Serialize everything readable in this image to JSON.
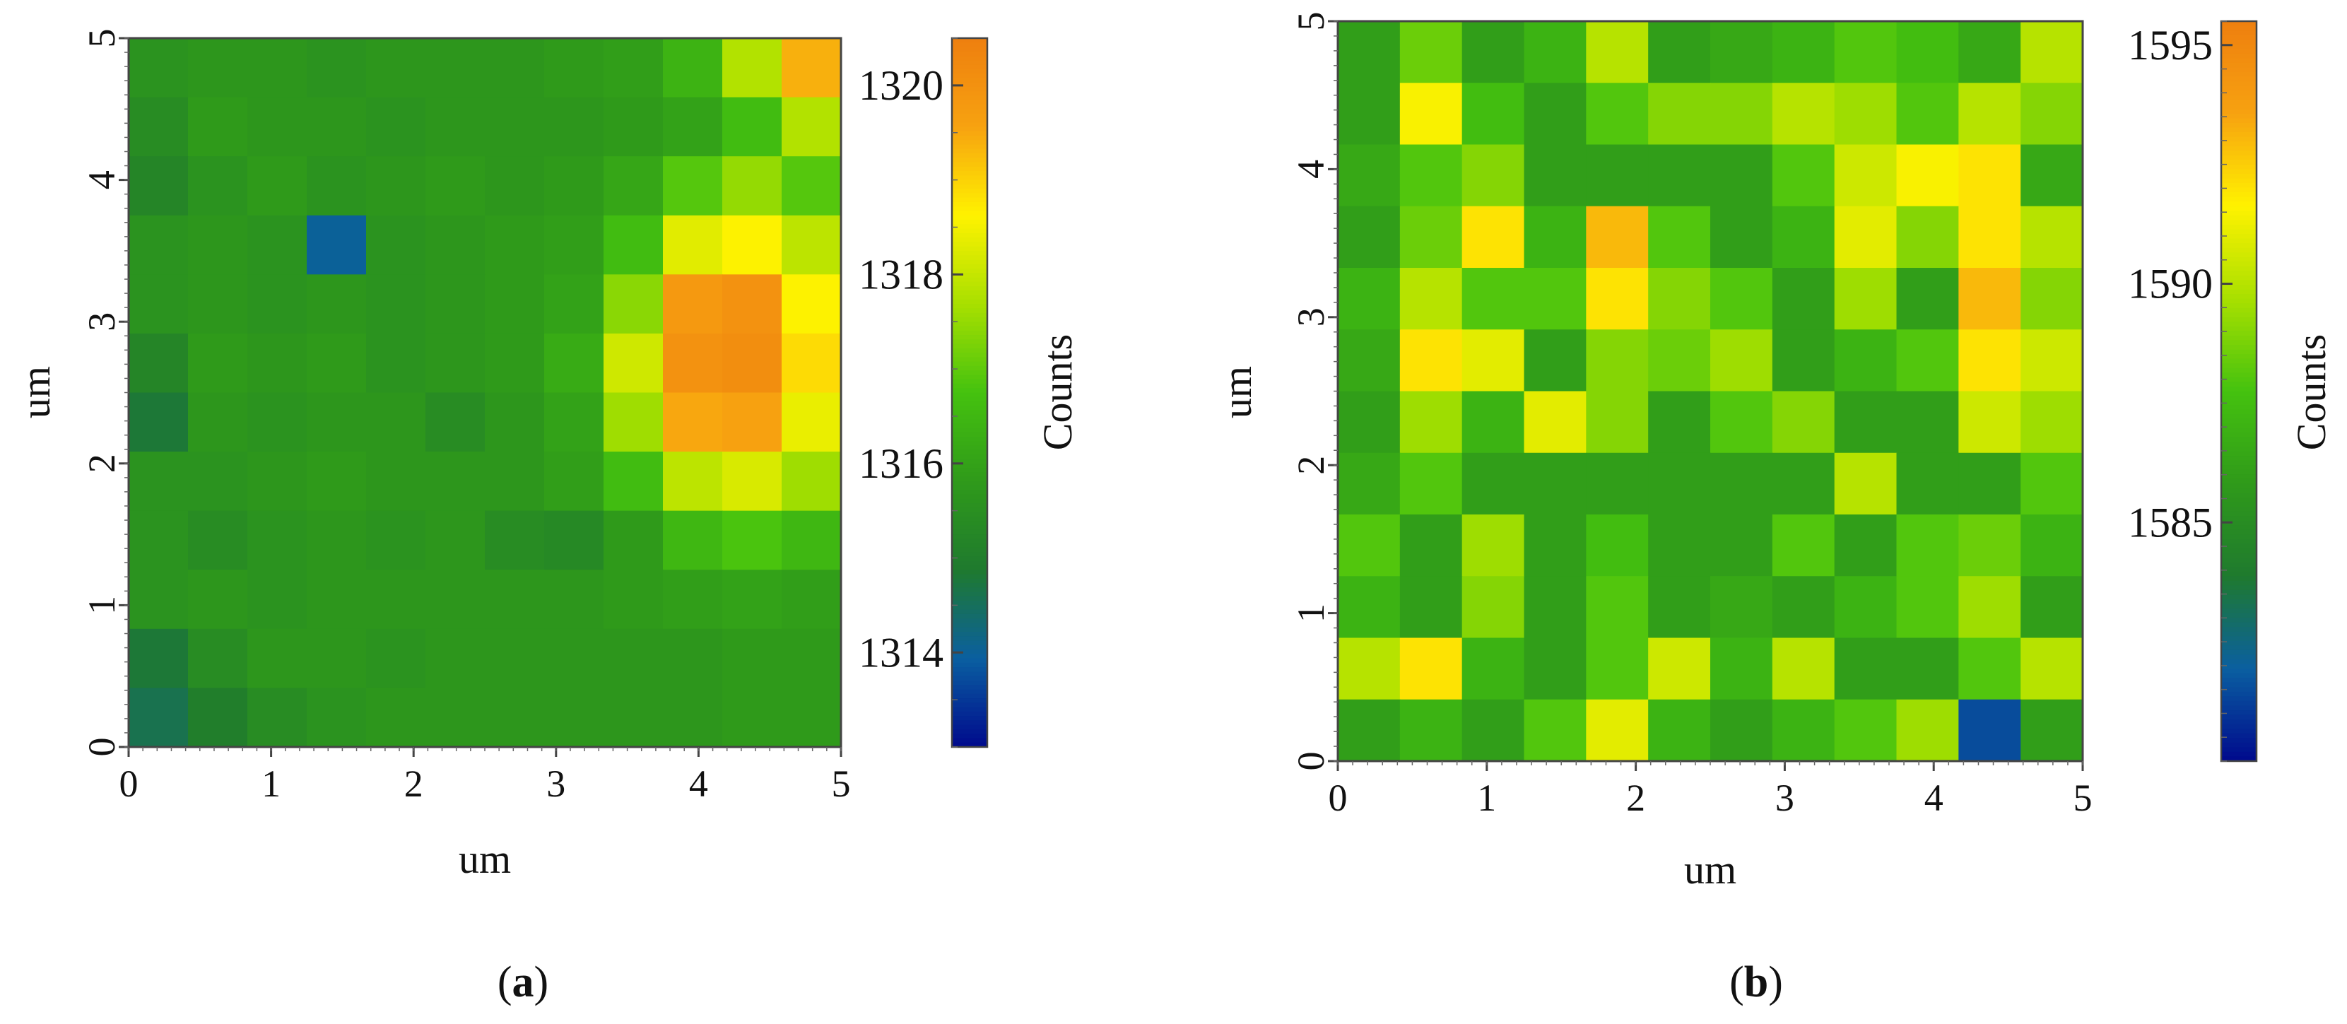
{
  "chart_data": [
    {
      "panel_label": "a",
      "type": "heatmap",
      "xlabel": "um",
      "ylabel": "um",
      "xlim": [
        0,
        5
      ],
      "ylim": [
        0,
        5
      ],
      "x_ticks": [
        0,
        1,
        2,
        3,
        4,
        5
      ],
      "y_ticks": [
        0,
        1,
        2,
        3,
        4,
        5
      ],
      "colorbar": {
        "label": "Counts",
        "min": 1313.0,
        "max": 1320.5,
        "ticks": [
          1314,
          1316,
          1318,
          1320
        ]
      },
      "grid_values": [
        [
          1315.6,
          1315.7,
          1315.7,
          1315.6,
          1315.7,
          1315.7,
          1315.7,
          1315.8,
          1315.9,
          1316.4,
          1317.8,
          1319.4
        ],
        [
          1315.4,
          1315.8,
          1315.7,
          1315.7,
          1315.6,
          1315.7,
          1315.7,
          1315.7,
          1315.8,
          1316.0,
          1316.6,
          1317.8
        ],
        [
          1315.2,
          1315.6,
          1315.8,
          1315.6,
          1315.7,
          1315.8,
          1315.7,
          1315.8,
          1316.1,
          1316.9,
          1317.5,
          1316.9
        ],
        [
          1315.6,
          1315.7,
          1315.6,
          1314.0,
          1315.6,
          1315.7,
          1315.8,
          1315.9,
          1316.6,
          1318.3,
          1318.6,
          1317.9
        ],
        [
          1315.6,
          1315.7,
          1315.6,
          1315.7,
          1315.6,
          1315.7,
          1315.8,
          1316.0,
          1317.4,
          1319.8,
          1320.0,
          1318.6
        ],
        [
          1315.2,
          1315.8,
          1315.7,
          1315.8,
          1315.6,
          1315.7,
          1315.8,
          1316.2,
          1318.1,
          1320.0,
          1320.1,
          1318.9
        ],
        [
          1314.8,
          1315.7,
          1315.6,
          1315.7,
          1315.7,
          1315.4,
          1315.7,
          1316.0,
          1317.6,
          1319.5,
          1319.6,
          1318.4
        ],
        [
          1315.6,
          1315.6,
          1315.7,
          1315.8,
          1315.7,
          1315.7,
          1315.7,
          1315.9,
          1316.6,
          1317.9,
          1318.2,
          1317.6
        ],
        [
          1315.6,
          1315.4,
          1315.6,
          1315.7,
          1315.6,
          1315.7,
          1315.4,
          1315.3,
          1315.8,
          1316.5,
          1316.8,
          1316.5
        ],
        [
          1315.6,
          1315.7,
          1315.6,
          1315.7,
          1315.7,
          1315.7,
          1315.7,
          1315.7,
          1315.8,
          1315.9,
          1316.0,
          1315.9
        ],
        [
          1314.8,
          1315.4,
          1315.7,
          1315.7,
          1315.6,
          1315.7,
          1315.7,
          1315.7,
          1315.7,
          1315.7,
          1315.8,
          1315.8
        ],
        [
          1314.6,
          1315.0,
          1315.4,
          1315.6,
          1315.7,
          1315.7,
          1315.7,
          1315.7,
          1315.7,
          1315.7,
          1315.8,
          1315.8
        ]
      ]
    },
    {
      "panel_label": "b",
      "type": "heatmap",
      "xlabel": "um",
      "ylabel": "um",
      "xlim": [
        0,
        5
      ],
      "ylim": [
        0,
        5
      ],
      "x_ticks": [
        0,
        1,
        2,
        3,
        4,
        5
      ],
      "y_ticks": [
        0,
        1,
        2,
        3,
        4,
        5
      ],
      "colorbar": {
        "label": "Counts",
        "min": 1580.0,
        "max": 1595.5,
        "ticks": [
          1585,
          1590,
          1595
        ]
      },
      "grid_values": [
        [
          1586.0,
          1588.5,
          1586.0,
          1587.0,
          1590.0,
          1586.0,
          1586.5,
          1587.0,
          1588.0,
          1587.5,
          1586.5,
          1590.0
        ],
        [
          1586.0,
          1591.5,
          1587.5,
          1586.0,
          1588.0,
          1589.0,
          1589.0,
          1590.0,
          1589.5,
          1588.0,
          1590.0,
          1589.0
        ],
        [
          1586.5,
          1588.0,
          1589.0,
          1586.0,
          1586.0,
          1586.0,
          1586.0,
          1588.0,
          1590.5,
          1591.5,
          1592.0,
          1586.5
        ],
        [
          1586.0,
          1588.5,
          1592.0,
          1587.0,
          1593.0,
          1588.0,
          1586.0,
          1587.0,
          1591.0,
          1589.0,
          1592.0,
          1590.0
        ],
        [
          1587.0,
          1590.0,
          1588.0,
          1588.0,
          1592.0,
          1589.0,
          1588.0,
          1586.0,
          1589.5,
          1586.0,
          1593.0,
          1589.0
        ],
        [
          1586.5,
          1592.0,
          1591.0,
          1586.0,
          1589.0,
          1588.5,
          1589.5,
          1586.0,
          1587.0,
          1588.0,
          1592.0,
          1590.5
        ],
        [
          1586.0,
          1589.5,
          1587.0,
          1591.0,
          1589.0,
          1586.0,
          1588.0,
          1589.0,
          1586.0,
          1586.0,
          1590.5,
          1589.5
        ],
        [
          1586.5,
          1588.0,
          1586.0,
          1586.0,
          1586.0,
          1586.0,
          1586.0,
          1586.0,
          1590.0,
          1586.0,
          1586.0,
          1588.0
        ],
        [
          1588.0,
          1586.0,
          1589.5,
          1586.0,
          1587.5,
          1586.0,
          1586.0,
          1588.0,
          1586.0,
          1588.0,
          1588.5,
          1587.0
        ],
        [
          1587.0,
          1586.0,
          1589.0,
          1586.0,
          1588.0,
          1586.0,
          1586.5,
          1586.0,
          1587.0,
          1588.0,
          1589.5,
          1586.0
        ],
        [
          1590.0,
          1592.0,
          1587.0,
          1586.0,
          1588.0,
          1590.5,
          1587.0,
          1590.0,
          1586.0,
          1586.0,
          1588.0,
          1590.0
        ],
        [
          1586.0,
          1587.0,
          1586.0,
          1588.0,
          1591.0,
          1587.0,
          1586.0,
          1587.0,
          1588.0,
          1589.5,
          1581.5,
          1586.0
        ]
      ]
    }
  ],
  "colormap": [
    "#000a8c",
    "#0a5fa0",
    "#1f7a2e",
    "#2f9a1a",
    "#45c20f",
    "#a8e000",
    "#fff200",
    "#f7a210",
    "#ee7f0f"
  ]
}
